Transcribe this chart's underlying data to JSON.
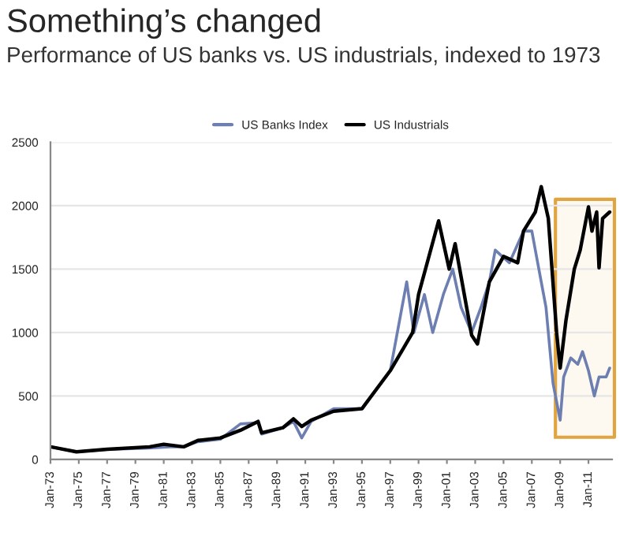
{
  "chart_data": {
    "type": "line",
    "title": "Something’s changed",
    "subtitle": "Performance of US banks vs. US industrials, indexed to 1973",
    "xlim": [
      "1973-01",
      "2012-09"
    ],
    "ylim": [
      0,
      2500
    ],
    "yticks": [
      0,
      500,
      1000,
      1500,
      2000,
      2500
    ],
    "xticks": [
      {
        "value": "1973-01",
        "label": "Jan-73"
      },
      {
        "value": "1975-01",
        "label": "Jan-75"
      },
      {
        "value": "1977-01",
        "label": "Jan-77"
      },
      {
        "value": "1979-01",
        "label": "Jan-79"
      },
      {
        "value": "1981-01",
        "label": "Jan-81"
      },
      {
        "value": "1983-01",
        "label": "Jan-83"
      },
      {
        "value": "1985-01",
        "label": "Jan-85"
      },
      {
        "value": "1987-01",
        "label": "Jan-87"
      },
      {
        "value": "1989-01",
        "label": "Jan-89"
      },
      {
        "value": "1991-01",
        "label": "Jan-91"
      },
      {
        "value": "1993-01",
        "label": "Jan-93"
      },
      {
        "value": "1995-01",
        "label": "Jan-95"
      },
      {
        "value": "1997-01",
        "label": "Jan-97"
      },
      {
        "value": "1999-01",
        "label": "Jan-99"
      },
      {
        "value": "2001-01",
        "label": "Jan-01"
      },
      {
        "value": "2003-01",
        "label": "Jan-03"
      },
      {
        "value": "2005-01",
        "label": "Jan-05"
      },
      {
        "value": "2007-01",
        "label": "Jan-07"
      },
      {
        "value": "2009-01",
        "label": "Jan-09"
      },
      {
        "value": "2011-01",
        "label": "Jan-11"
      }
    ],
    "grid": "y",
    "legend": "top",
    "bands": [
      {
        "axis": "x",
        "from": "2008-09",
        "to": "2012-11",
        "color": "#e0a540"
      }
    ],
    "marker": "none",
    "line_style": "solid",
    "series": [
      {
        "name": "US Banks Index",
        "color": "#6d7fb0",
        "x": [
          "1973-01",
          "1974-11",
          "1977-01",
          "1980-01",
          "1981-06",
          "1982-06",
          "1983-06",
          "1985-01",
          "1986-06",
          "1987-09",
          "1987-12",
          "1989-06",
          "1990-03",
          "1990-10",
          "1991-06",
          "1993-01",
          "1995-01",
          "1997-01",
          "1998-03",
          "1998-09",
          "1999-06",
          "2000-01",
          "2000-10",
          "2001-06",
          "2002-01",
          "2002-10",
          "2003-06",
          "2004-01",
          "2004-06",
          "2005-06",
          "2006-06",
          "2007-01",
          "2007-04",
          "2007-10",
          "2008-01",
          "2008-04",
          "2008-07",
          "2009-01",
          "2009-04",
          "2009-10",
          "2010-04",
          "2010-08",
          "2011-01",
          "2011-06",
          "2011-10",
          "2012-04",
          "2012-07"
        ],
        "values": [
          100,
          60,
          80,
          90,
          100,
          100,
          140,
          160,
          280,
          290,
          200,
          250,
          300,
          170,
          300,
          400,
          400,
          700,
          1400,
          1000,
          1300,
          1000,
          1300,
          1500,
          1200,
          1000,
          1200,
          1400,
          1650,
          1550,
          1800,
          1800,
          1650,
          1350,
          1200,
          900,
          600,
          310,
          650,
          800,
          750,
          850,
          700,
          500,
          650,
          650,
          720
        ]
      },
      {
        "name": "US Industrials",
        "color": "#000000",
        "x": [
          "1973-01",
          "1974-11",
          "1977-01",
          "1980-01",
          "1981-01",
          "1982-06",
          "1983-06",
          "1985-01",
          "1986-06",
          "1987-09",
          "1987-12",
          "1989-06",
          "1990-03",
          "1990-10",
          "1991-06",
          "1993-01",
          "1995-01",
          "1997-01",
          "1998-08",
          "1999-01",
          "2000-06",
          "2001-03",
          "2001-08",
          "2002-10",
          "2003-03",
          "2004-01",
          "2005-01",
          "2006-01",
          "2006-06",
          "2007-04",
          "2007-09",
          "2008-03",
          "2008-10",
          "2009-01",
          "2009-06",
          "2010-01",
          "2010-06",
          "2011-01",
          "2011-04",
          "2011-08",
          "2011-10",
          "2012-01",
          "2012-07"
        ],
        "values": [
          100,
          60,
          80,
          100,
          120,
          100,
          150,
          170,
          230,
          300,
          210,
          250,
          320,
          260,
          310,
          380,
          400,
          700,
          1000,
          1300,
          1880,
          1500,
          1700,
          980,
          910,
          1400,
          1600,
          1550,
          1800,
          1950,
          2150,
          1900,
          1000,
          720,
          1100,
          1500,
          1650,
          1990,
          1800,
          1950,
          1510,
          1900,
          1950
        ]
      }
    ]
  }
}
